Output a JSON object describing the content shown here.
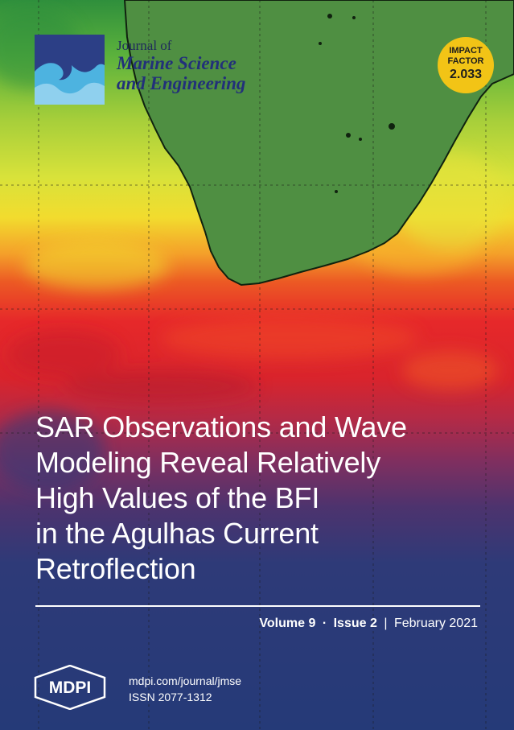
{
  "journal": {
    "name_line1": "Journal of",
    "name_line2": "Marine Science",
    "name_line3": "and Engineering"
  },
  "impact_factor": {
    "label_line1": "IMPACT",
    "label_line2": "FACTOR",
    "value": "2.033"
  },
  "article": {
    "title_lines": [
      "SAR Observations and Wave",
      "Modeling Reveal Relatively",
      "High Values of the BFI",
      "in the Agulhas Current",
      "Retroflection"
    ]
  },
  "issue": {
    "volume": "Volume 9",
    "dot": "·",
    "issue": "Issue 2",
    "bar": "|",
    "date": "February 2021"
  },
  "publisher": {
    "logo_text": "MDPI",
    "url": "mdpi.com/journal/jmse",
    "issn": "ISSN 2077-1312"
  },
  "colors": {
    "logo_blue": "#2c3f86",
    "badge_yellow": "#f2c416",
    "land_green": "#4f8f42",
    "title_white": "#ffffff"
  }
}
